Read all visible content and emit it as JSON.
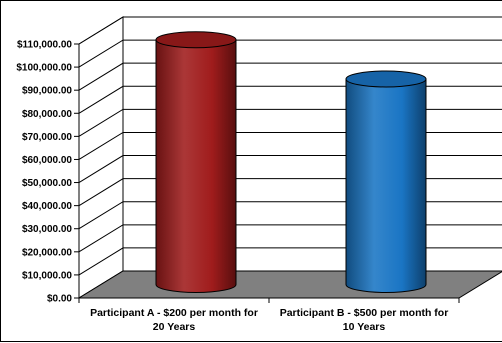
{
  "chart_data": {
    "type": "bar",
    "style": "3d-cylinder",
    "categories": [
      [
        "Participant A - $200 per month for",
        "20 Years"
      ],
      [
        "Participant B - $500 per month for",
        "10 Years"
      ]
    ],
    "values": [
      106000,
      89000
    ],
    "colors": [
      "#a01c1c",
      "#1a75c4"
    ],
    "floor_color": "#808080",
    "ylim": [
      0,
      110000
    ],
    "yticks": [
      0,
      10000,
      20000,
      30000,
      40000,
      50000,
      60000,
      70000,
      80000,
      90000,
      100000,
      110000
    ],
    "ytick_labels": [
      "$0.00",
      "$10,000.00",
      "$20,000.00",
      "$30,000.00",
      "$40,000.00",
      "$50,000.00",
      "$60,000.00",
      "$70,000.00",
      "$80,000.00",
      "$90,000.00",
      "$100,000.00",
      "$110,000.00"
    ],
    "grid": true,
    "legend": "none"
  }
}
